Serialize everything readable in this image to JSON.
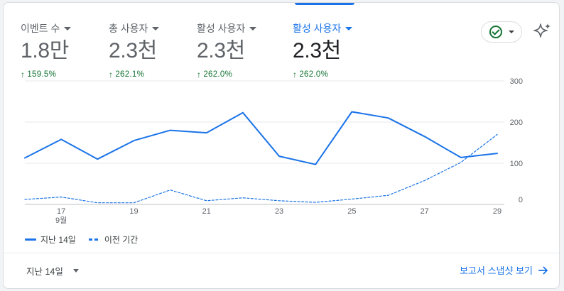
{
  "metrics": [
    {
      "label": "이벤트 수",
      "value": "1.8만",
      "change": "159.5%",
      "active": false
    },
    {
      "label": "총 사용자",
      "value": "2.3천",
      "change": "262.1%",
      "active": false
    },
    {
      "label": "활성 사용자",
      "value": "2.3천",
      "change": "262.0%",
      "active": false
    },
    {
      "label": "활성 사용자",
      "value": "2.3천",
      "change": "262.0%",
      "active": true
    }
  ],
  "icons": {
    "change": "arrow-up-icon",
    "status": "check-circle-icon",
    "ai": "sparkle-icon",
    "link": "arrow-right-icon"
  },
  "colors": {
    "accent": "#1a73e8",
    "positive": "#137333"
  },
  "chart_data": {
    "type": "line",
    "x": [
      16,
      17,
      18,
      19,
      20,
      21,
      22,
      23,
      24,
      25,
      26,
      27,
      28,
      29
    ],
    "x_ticks": [
      "17",
      "19",
      "21",
      "23",
      "25",
      "27",
      "29"
    ],
    "x_month_label": "9월",
    "y_ticks": [
      "300",
      "200",
      "100",
      "0"
    ],
    "ylim": [
      0,
      300
    ],
    "grid": true,
    "series": [
      {
        "name": "지난 14일",
        "style": "solid",
        "values": [
          113,
          158,
          110,
          155,
          180,
          174,
          223,
          117,
          97,
          225,
          210,
          165,
          114,
          124
        ]
      },
      {
        "name": "이전 기간",
        "style": "dashed",
        "values": [
          12,
          18,
          4,
          4,
          35,
          9,
          16,
          9,
          5,
          13,
          22,
          58,
          102,
          170
        ]
      }
    ],
    "legend_position": "bottom-left"
  },
  "footer": {
    "range": "지난 14일",
    "snapshot": "보고서 스냅샷 보기"
  }
}
